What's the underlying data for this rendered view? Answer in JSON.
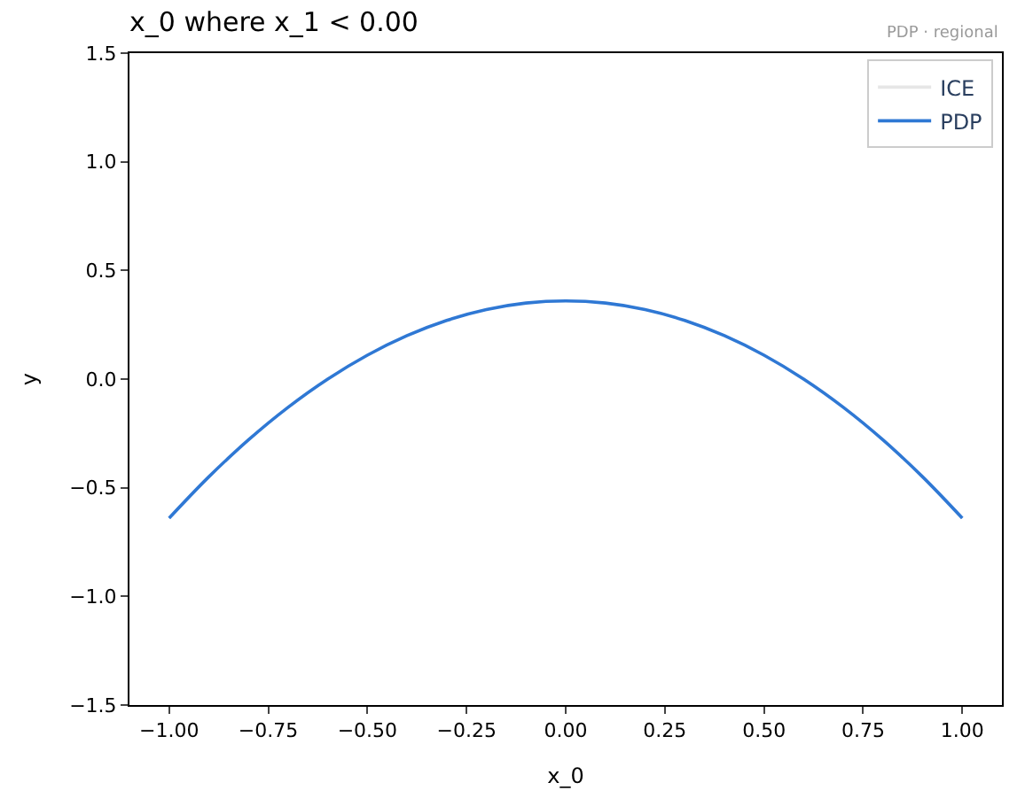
{
  "chart_data": {
    "type": "line",
    "title": "x_0 where x_1 < 0.00",
    "xlabel": "x_0",
    "ylabel": "y",
    "annotations": [
      "PDP · regional"
    ],
    "x": [
      -1.0,
      -0.9,
      -0.8,
      -0.7,
      -0.6,
      -0.5,
      -0.4,
      -0.3,
      -0.2,
      -0.1,
      0.0,
      0.1,
      0.2,
      0.3,
      0.4,
      0.5,
      0.6,
      0.7,
      0.8,
      0.9,
      1.0
    ],
    "series": [
      {
        "name": "ICE",
        "color": "#e6e6e6",
        "values": [
          null,
          null,
          null,
          null,
          null,
          null,
          null,
          null,
          null,
          null,
          null,
          null,
          null,
          null,
          null,
          null,
          null,
          null,
          null,
          null,
          null
        ]
      },
      {
        "name": "PDP",
        "color": "#2f78d4",
        "values": [
          -0.64,
          -0.45,
          -0.28,
          -0.13,
          0.0,
          0.11,
          0.2,
          0.27,
          0.32,
          0.35,
          0.36,
          0.35,
          0.32,
          0.27,
          0.2,
          0.11,
          0.0,
          -0.13,
          -0.28,
          -0.45,
          -0.64
        ]
      }
    ],
    "xlim": [
      -1.1,
      1.1
    ],
    "xticks": [
      {
        "value": -1,
        "label": "−1.00"
      },
      {
        "value": -0.75,
        "label": "−0.75"
      },
      {
        "value": -0.5,
        "label": "−0.50"
      },
      {
        "value": -0.25,
        "label": "−0.25"
      },
      {
        "value": 0,
        "label": "0.00"
      },
      {
        "value": 0.25,
        "label": "0.25"
      },
      {
        "value": 0.5,
        "label": "0.50"
      },
      {
        "value": 0.75,
        "label": "0.75"
      },
      {
        "value": 1,
        "label": "1.00"
      }
    ],
    "ylim": [
      -1.5,
      1.5
    ],
    "yticks": [
      {
        "value": -1.5,
        "label": "−1.5"
      },
      {
        "value": -1,
        "label": "−1.0"
      },
      {
        "value": -0.5,
        "label": "−0.5"
      },
      {
        "value": 0,
        "label": "0.0"
      },
      {
        "value": 0.5,
        "label": "0.5"
      },
      {
        "value": 1,
        "label": "1.0"
      },
      {
        "value": 1.5,
        "label": "1.5"
      }
    ],
    "legend": "top right",
    "marker": "none",
    "line_style": "solid"
  }
}
